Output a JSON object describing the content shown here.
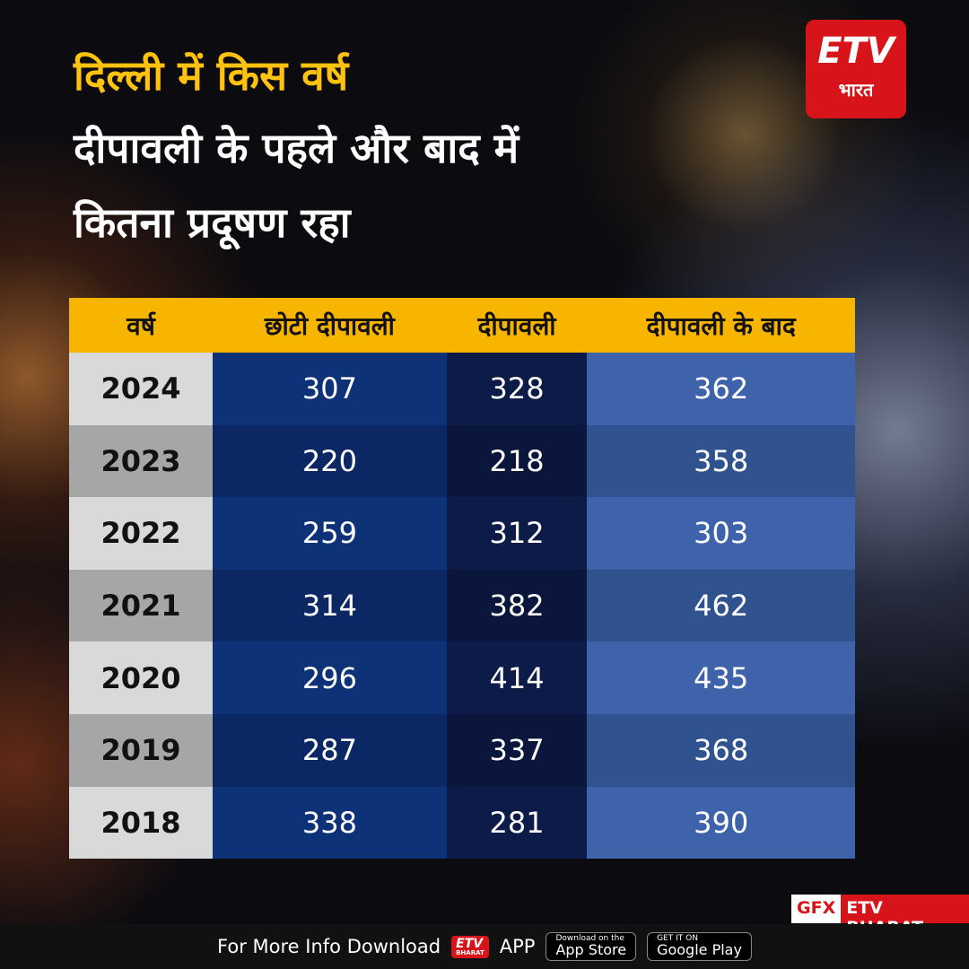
{
  "header": {
    "title": [
      "दिल्ली में किस वर्ष",
      "दीपावली के पहले और बाद में",
      "कितना प्रदूषण रहा"
    ]
  },
  "logo": {
    "brand": "ETV",
    "sub": "भारत"
  },
  "table": {
    "columns": [
      "वर्ष",
      "छोटी दीपावली",
      "दीपावली",
      "दीपावली के बाद"
    ],
    "rows": [
      [
        "2024",
        307,
        328,
        362
      ],
      [
        "2023",
        220,
        218,
        358
      ],
      [
        "2022",
        259,
        312,
        303
      ],
      [
        "2021",
        314,
        382,
        462
      ],
      [
        "2020",
        296,
        414,
        435
      ],
      [
        "2019",
        287,
        337,
        368
      ],
      [
        "2018",
        338,
        281,
        390
      ]
    ]
  },
  "credit": [
    "GFX",
    "ETV BHARAT"
  ],
  "footer": {
    "text": "For More Info Download",
    "icon": {
      "brand": "ETV",
      "sub": "BHARAT"
    },
    "app": "APP",
    "badges": [
      {
        "small": "Download on the",
        "large": "App Store"
      },
      {
        "small": "GET IT ON",
        "large": "Google Play"
      }
    ]
  }
}
